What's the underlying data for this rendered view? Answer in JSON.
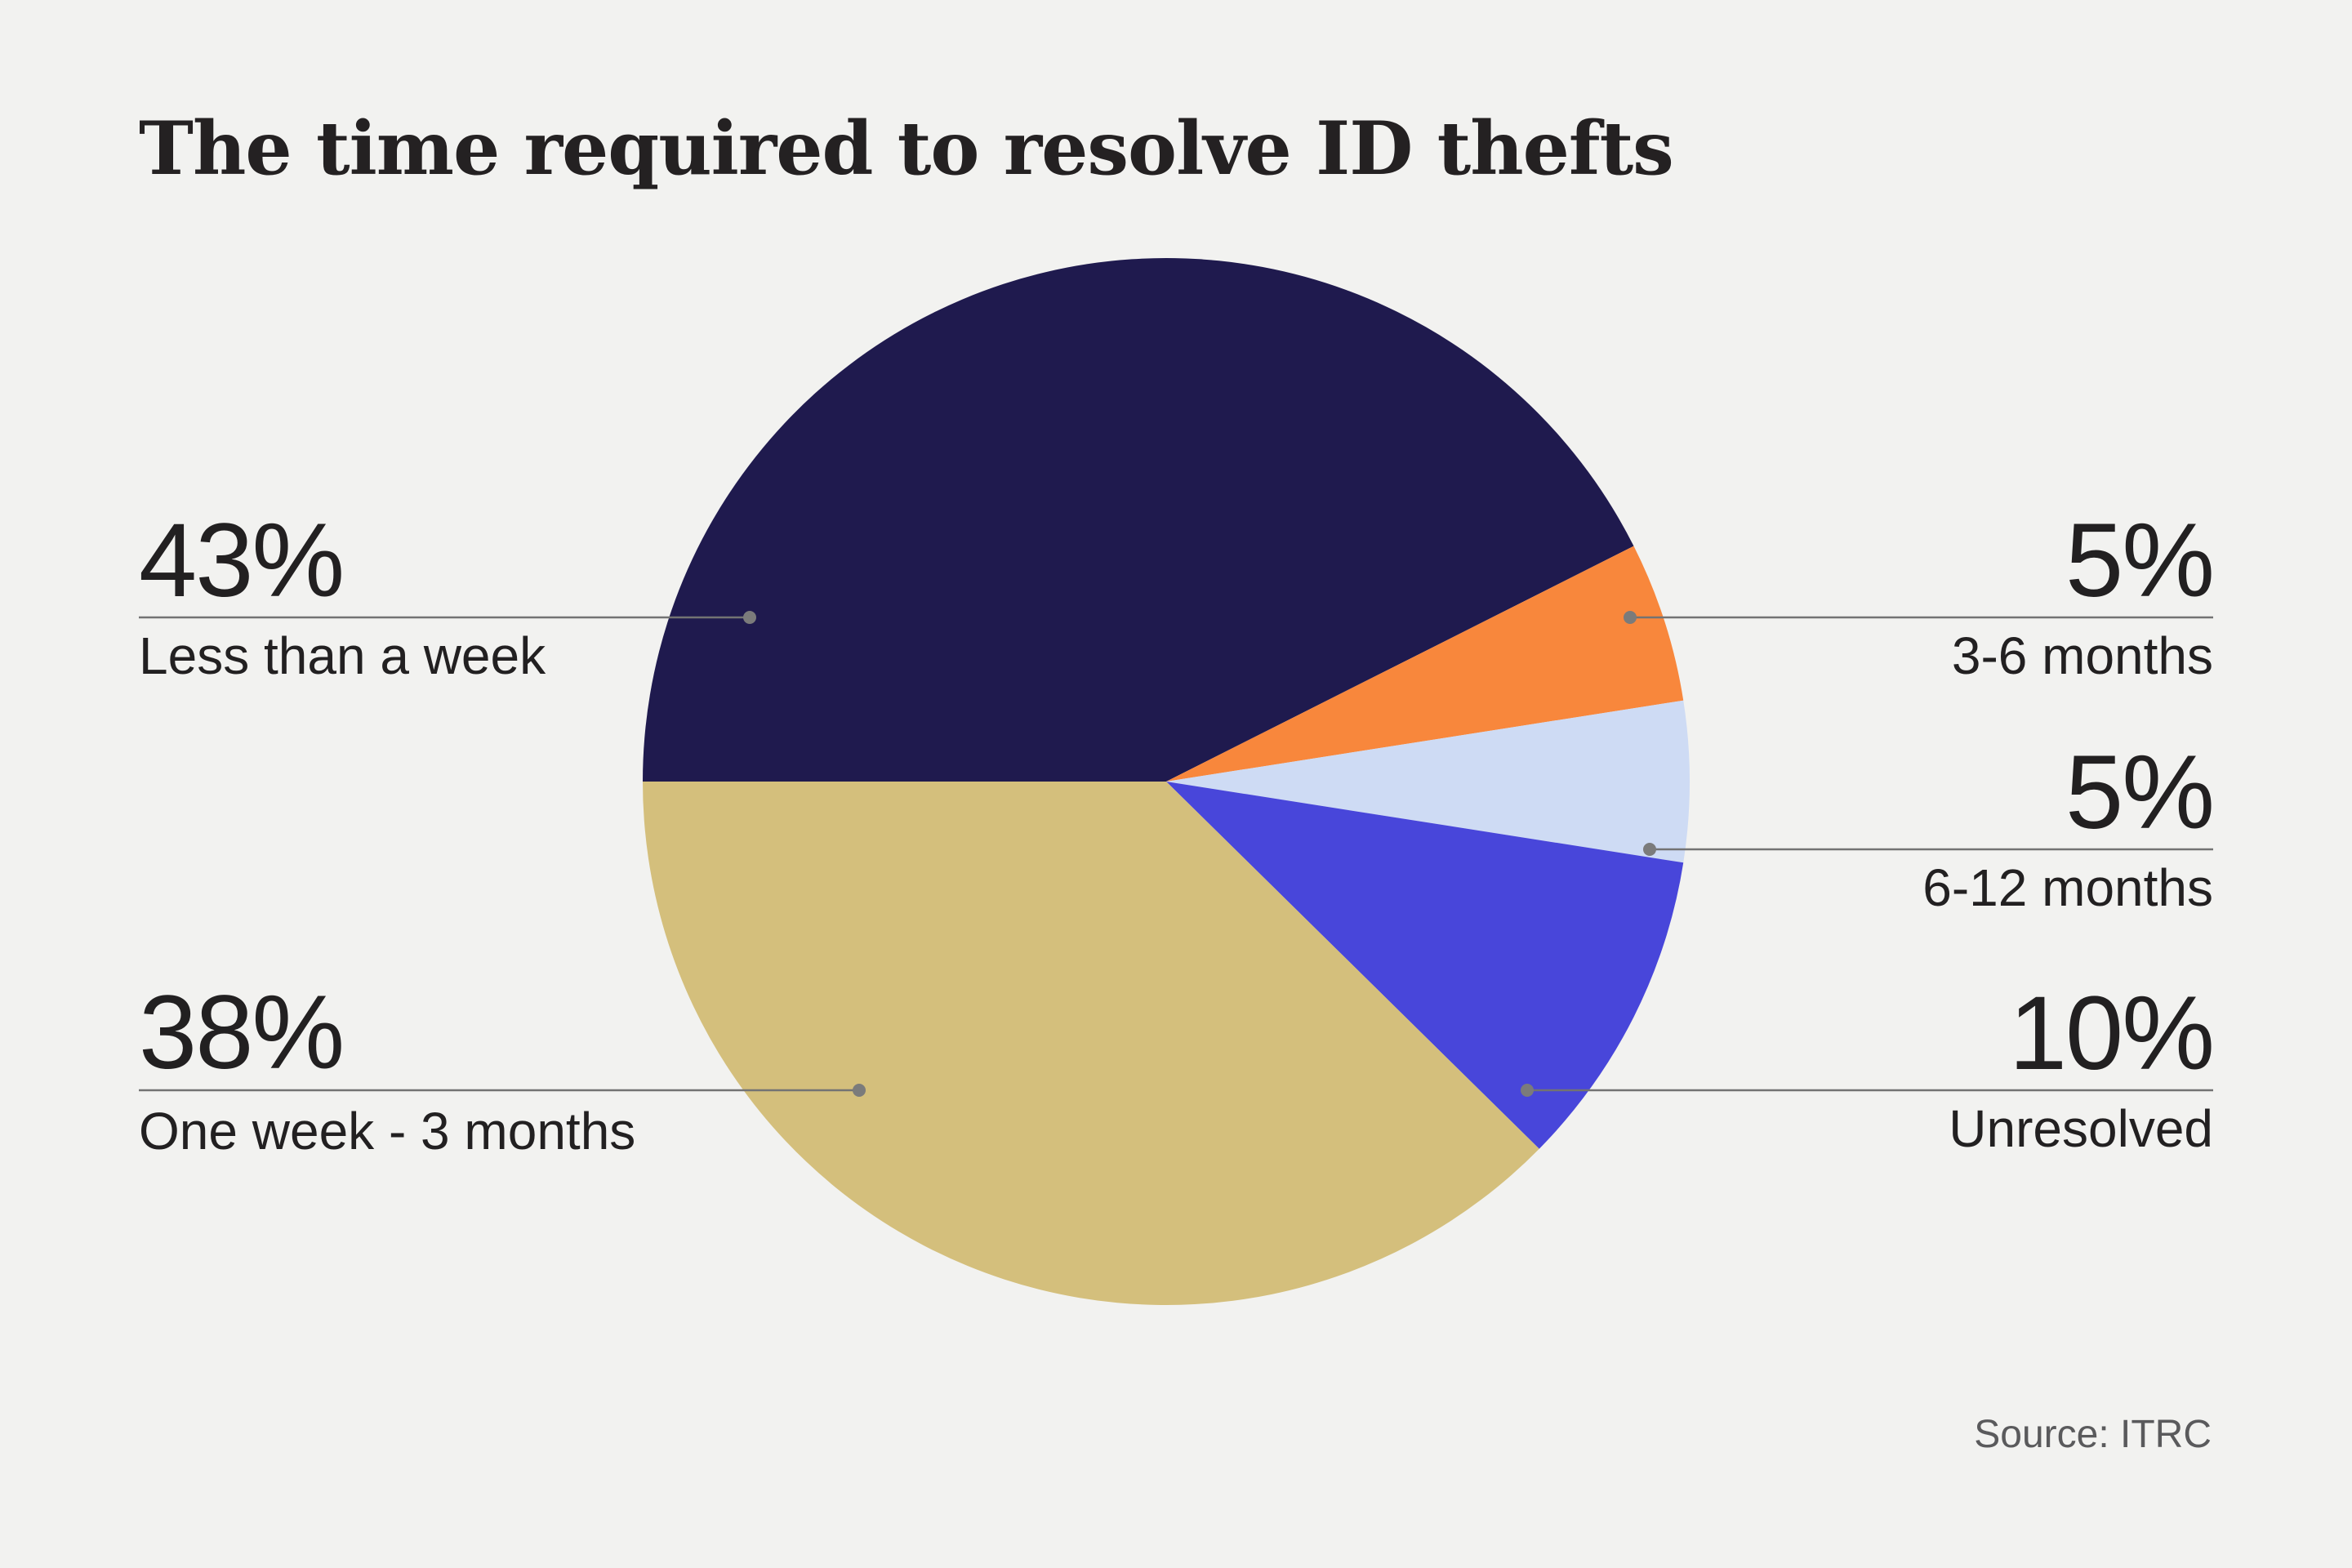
{
  "title": "The time required to resolve ID thefts",
  "source": "Source: ITRC",
  "colors": {
    "background": "#f2f2f0",
    "text": "#222021",
    "leader_line": "#737373",
    "leader_dot": "#7b7b7b"
  },
  "chart_data": {
    "type": "pie",
    "title": "The time required to resolve ID thefts",
    "start_angle_deg": 180,
    "direction": "clockwise",
    "legend_position": "callout-labels-left-right",
    "grid": false,
    "slices": [
      {
        "label": "Less than a week",
        "value": 43,
        "display": "43%",
        "color": "#1f1a4e",
        "callout_side": "left"
      },
      {
        "label": "3-6 months",
        "value": 5,
        "display": "5%",
        "color": "#f8873c",
        "callout_side": "right"
      },
      {
        "label": "6-12 months",
        "value": 5,
        "display": "5%",
        "color": "#cedbf4",
        "callout_side": "right"
      },
      {
        "label": "Unresolved",
        "value": 10,
        "display": "10%",
        "color": "#4846da",
        "callout_side": "right"
      },
      {
        "label": "One week - 3 months",
        "value": 38,
        "display": "38%",
        "color": "#d4bf7c",
        "callout_side": "left"
      }
    ]
  }
}
